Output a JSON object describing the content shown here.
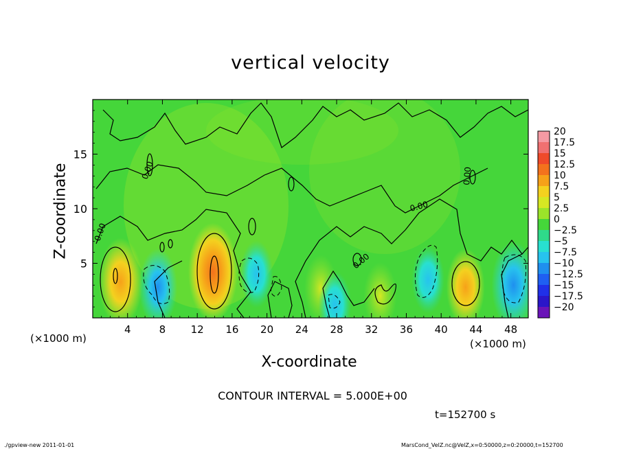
{
  "chart_data": {
    "type": "heatmap",
    "title": "vertical velocity",
    "xlabel": "X-coordinate",
    "ylabel": "Z-coordinate",
    "x_unit_label": "(×1000 m)",
    "xlim": [
      0,
      50
    ],
    "ylim": [
      0,
      20
    ],
    "x_ticks": [
      "4",
      "8",
      "12",
      "16",
      "20",
      "24",
      "28",
      "32",
      "36",
      "40",
      "44",
      "48"
    ],
    "x_tick_values": [
      4,
      8,
      12,
      16,
      20,
      24,
      28,
      32,
      36,
      40,
      44,
      48
    ],
    "y_ticks": [
      "5",
      "10",
      "15"
    ],
    "y_tick_values": [
      5,
      10,
      15
    ],
    "contour_label": "0.00",
    "colorbar": {
      "labels": [
        "20",
        "17.5",
        "15",
        "12.5",
        "10",
        "7.5",
        "5",
        "2.5",
        "0",
        "−2.5",
        "−5",
        "−7.5",
        "−10",
        "−12.5",
        "−15",
        "−17.5",
        "−20"
      ],
      "colors": [
        "#f49aa3",
        "#f07071",
        "#ef4a2a",
        "#f3721d",
        "#f6a119",
        "#f4d11f",
        "#d6e723",
        "#9be42a",
        "#45d63a",
        "#2fd98a",
        "#28e0d0",
        "#27c3ee",
        "#1f8fef",
        "#1f5ff2",
        "#2030e8",
        "#2a16c9",
        "#6a14b8"
      ]
    },
    "features": [
      {
        "kind": "updraft",
        "x": 3.2,
        "z": 3.3,
        "peak": 10
      },
      {
        "kind": "downdraft",
        "x": 7.5,
        "z": 2.8,
        "peak": -7.5
      },
      {
        "kind": "updraft",
        "x": 13.8,
        "z": 4.2,
        "peak": 12.5
      },
      {
        "kind": "downdraft",
        "x": 18.8,
        "z": 4.0,
        "peak": -5
      },
      {
        "kind": "updraft",
        "x": 26.2,
        "z": 2.7,
        "peak": 5
      },
      {
        "kind": "downdraft",
        "x": 27.8,
        "z": 1.2,
        "peak": -5
      },
      {
        "kind": "updraft",
        "x": 33.0,
        "z": 2.0,
        "peak": 5
      },
      {
        "kind": "downdraft",
        "x": 38.5,
        "z": 3.5,
        "peak": -5
      },
      {
        "kind": "updraft",
        "x": 42.8,
        "z": 2.8,
        "peak": 7.5
      },
      {
        "kind": "downdraft",
        "x": 48.3,
        "z": 3.0,
        "peak": -10
      }
    ]
  },
  "contour_interval": "CONTOUR INTERVAL = 5.000E+00",
  "time": "t=152700 s",
  "footer_left": "./gpview-new   2011-01-01",
  "footer_right": "MarsCond_VelZ.nc@VelZ,x=0:50000,z=0:20000,t=152700"
}
